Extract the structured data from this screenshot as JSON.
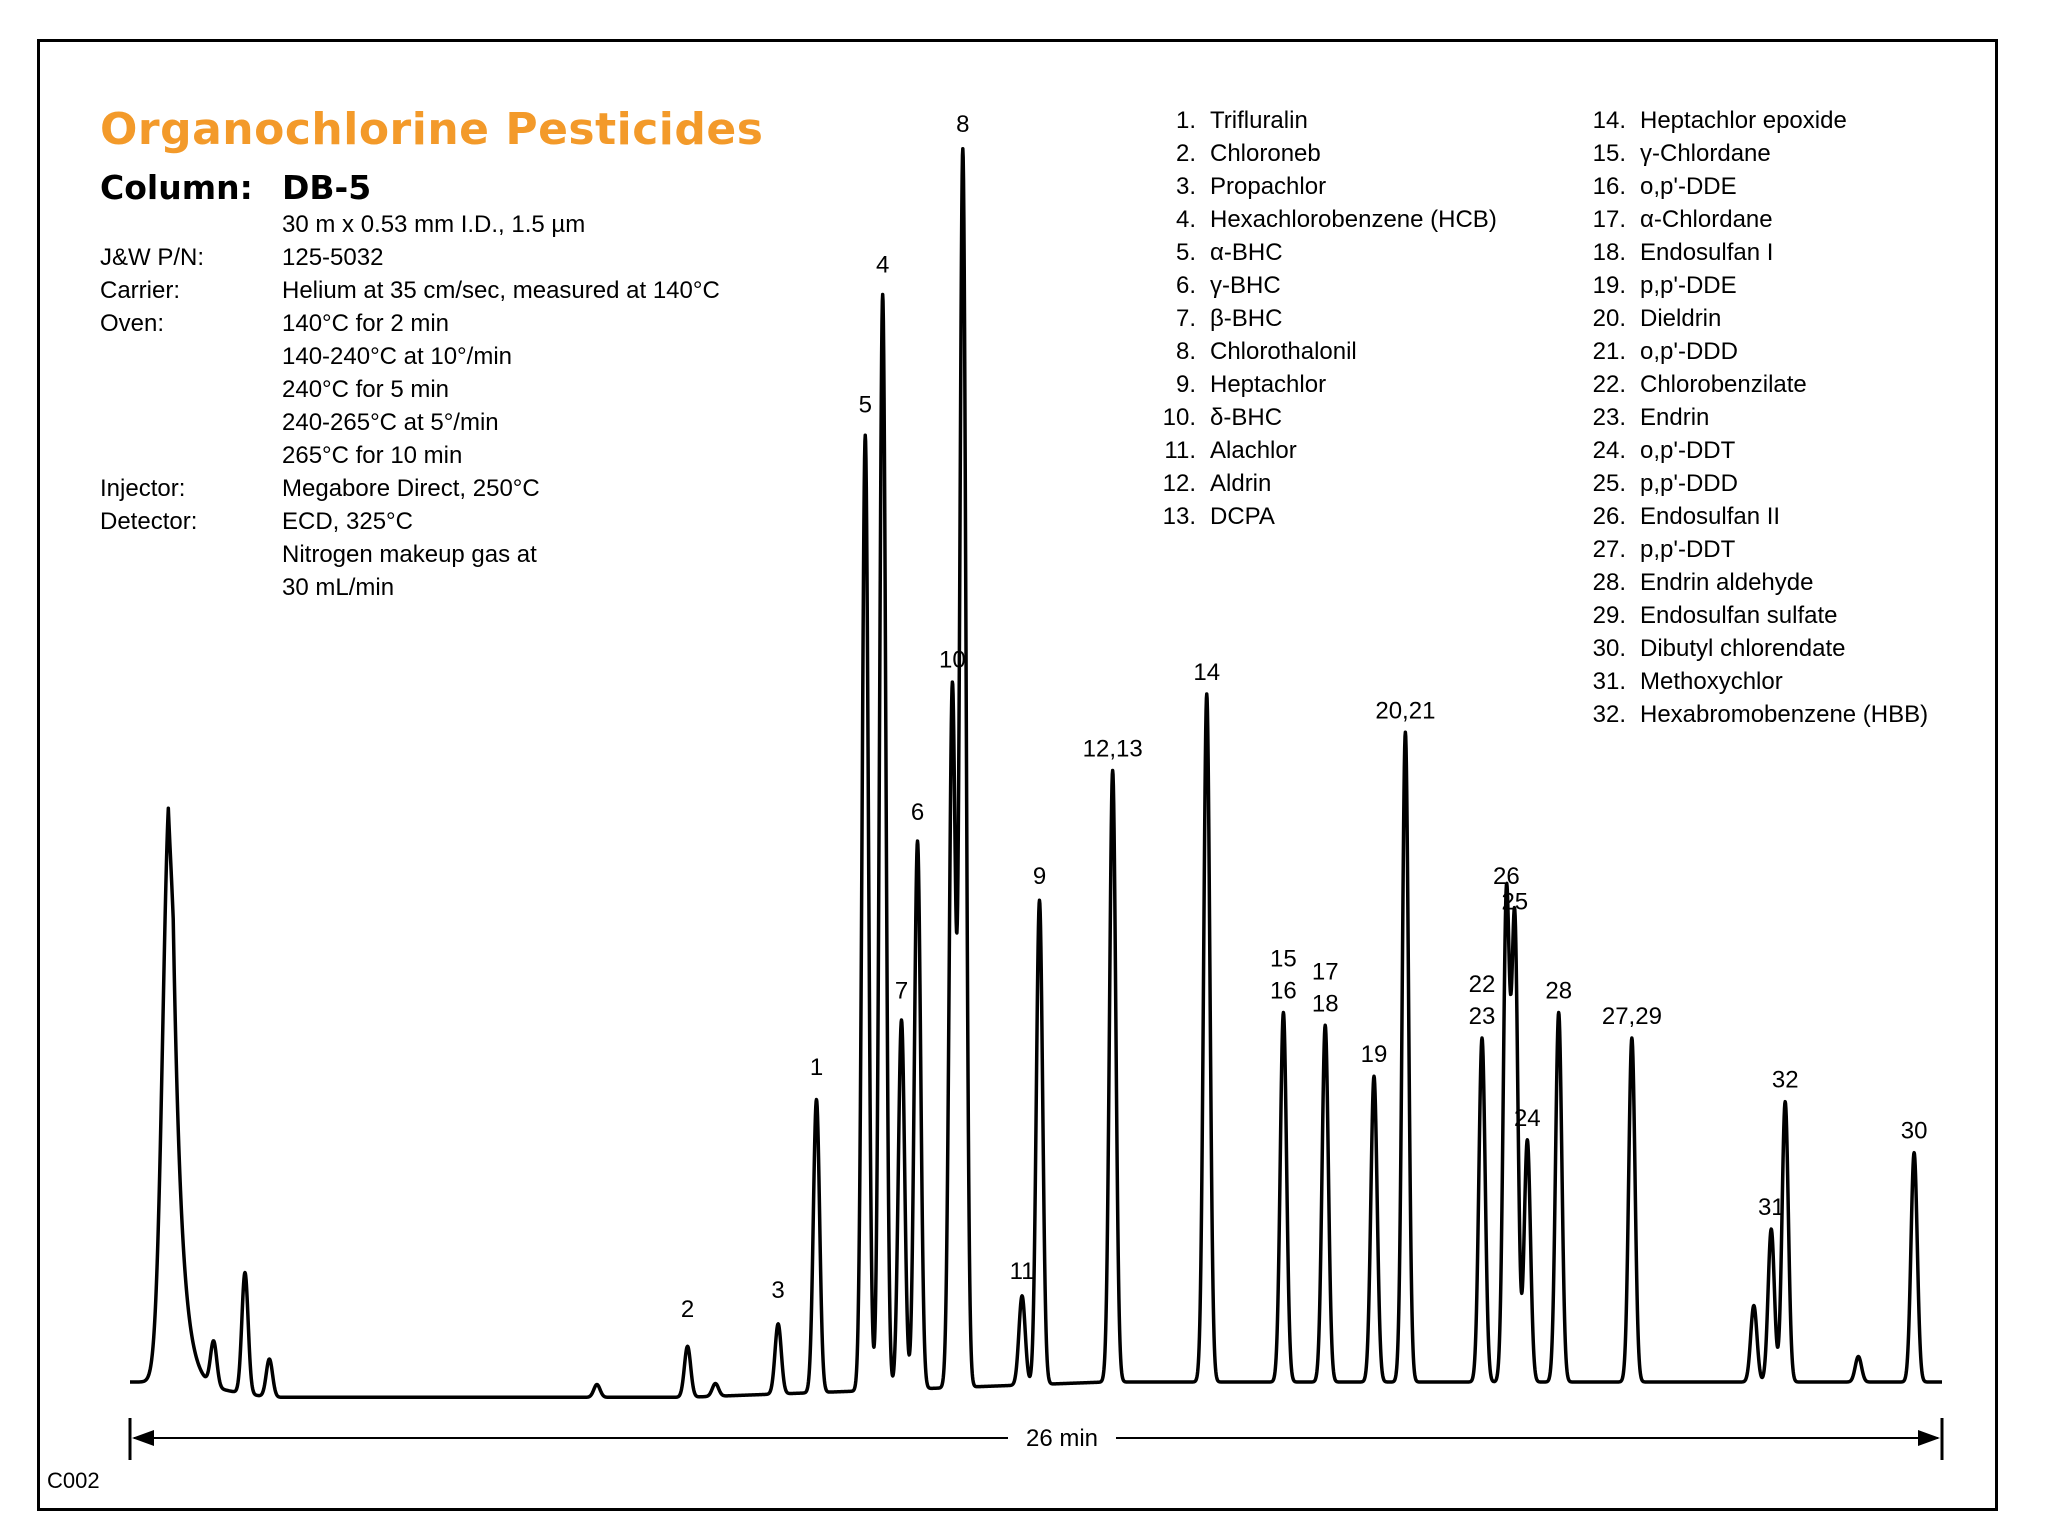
{
  "chart_data": {
    "type": "line",
    "title": "Organochlorine Pesticides",
    "column_label": "Column:",
    "column_value": "DB-5",
    "conditions": [
      {
        "label": "",
        "value": "30 m x 0.53 mm I.D., 1.5 µm"
      },
      {
        "label": "J&W P/N:",
        "value": "125-5032"
      },
      {
        "label": "Carrier:",
        "value": "Helium at 35 cm/sec, measured at 140°C"
      },
      {
        "label": "Oven:",
        "value": "140°C for 2 min"
      },
      {
        "label": "",
        "value": "140-240°C at 10°/min"
      },
      {
        "label": "",
        "value": "240°C for 5 min"
      },
      {
        "label": "",
        "value": "240-265°C at 5°/min"
      },
      {
        "label": "",
        "value": "265°C for 10 min"
      },
      {
        "label": "Injector:",
        "value": "Megabore Direct, 250°C"
      },
      {
        "label": "Detector:",
        "value": "ECD, 325°C"
      },
      {
        "label": "",
        "value": "Nitrogen makeup gas at"
      },
      {
        "label": "",
        "value": "30 mL/min"
      }
    ],
    "compounds_left": [
      {
        "num": "1.",
        "name": "Trifluralin"
      },
      {
        "num": "2.",
        "name": "Chloroneb"
      },
      {
        "num": "3.",
        "name": "Propachlor"
      },
      {
        "num": "4.",
        "name": "Hexachlorobenzene (HCB)"
      },
      {
        "num": "5.",
        "name": "α-BHC"
      },
      {
        "num": "6.",
        "name": "γ-BHC"
      },
      {
        "num": "7.",
        "name": "β-BHC"
      },
      {
        "num": "8.",
        "name": "Chlorothalonil"
      },
      {
        "num": "9.",
        "name": "Heptachlor"
      },
      {
        "num": "10.",
        "name": "δ-BHC"
      },
      {
        "num": "11.",
        "name": "Alachlor"
      },
      {
        "num": "12.",
        "name": "Aldrin"
      },
      {
        "num": "13.",
        "name": "DCPA"
      }
    ],
    "compounds_right": [
      {
        "num": "14.",
        "name": "Heptachlor epoxide"
      },
      {
        "num": "15.",
        "name": "γ-Chlordane"
      },
      {
        "num": "16.",
        "name": "o,p'-DDE"
      },
      {
        "num": "17.",
        "name": "α-Chlordane"
      },
      {
        "num": "18.",
        "name": "Endosulfan I"
      },
      {
        "num": "19.",
        "name": "p,p'-DDE"
      },
      {
        "num": "20.",
        "name": "Dieldrin"
      },
      {
        "num": "21.",
        "name": "o,p'-DDD"
      },
      {
        "num": "22.",
        "name": "Chlorobenzilate"
      },
      {
        "num": "23.",
        "name": "Endrin"
      },
      {
        "num": "24.",
        "name": "o,p'-DDT"
      },
      {
        "num": "25.",
        "name": "p,p'-DDD"
      },
      {
        "num": "26.",
        "name": "Endosulfan II"
      },
      {
        "num": "27.",
        "name": "p,p'-DDT"
      },
      {
        "num": "28.",
        "name": "Endrin aldehyde"
      },
      {
        "num": "29.",
        "name": "Endosulfan sulfate"
      },
      {
        "num": "30.",
        "name": "Dibutyl chlorendate"
      },
      {
        "num": "31.",
        "name": "Methoxychlor"
      },
      {
        "num": "32.",
        "name": "Hexabromobenzene (HBB)"
      }
    ],
    "time_span_label": "26 min",
    "x_range_min": [
      0,
      26
    ],
    "baseline_relative": 0.0,
    "peaks": [
      {
        "label": "",
        "t": 0.55,
        "height": 0.295
      },
      {
        "label": "",
        "t": 0.62,
        "height": 0.2
      },
      {
        "label": "",
        "t": 1.2,
        "height": 0.035
      },
      {
        "label": "",
        "t": 1.65,
        "height": 0.095
      },
      {
        "label": "",
        "t": 2.0,
        "height": 0.03
      },
      {
        "label": "",
        "t": 6.7,
        "height": 0.01
      },
      {
        "label": "",
        "t": 8.4,
        "height": 0.01
      },
      {
        "label": "2",
        "t": 8.0,
        "height": 0.04
      },
      {
        "label": "3",
        "t": 9.3,
        "height": 0.055
      },
      {
        "label": "1",
        "t": 9.85,
        "height": 0.23
      },
      {
        "label": "5",
        "t": 10.55,
        "height": 0.75
      },
      {
        "label": "4",
        "t": 10.8,
        "height": 0.86
      },
      {
        "label": "7",
        "t": 11.07,
        "height": 0.29
      },
      {
        "label": "6",
        "t": 11.3,
        "height": 0.43
      },
      {
        "label": "10",
        "t": 11.8,
        "height": 0.55
      },
      {
        "label": "8",
        "t": 11.95,
        "height": 0.97
      },
      {
        "label": "11",
        "t": 12.8,
        "height": 0.07
      },
      {
        "label": "9",
        "t": 13.05,
        "height": 0.38
      },
      {
        "label": "12,13",
        "t": 14.1,
        "height": 0.48
      },
      {
        "label": "14",
        "t": 15.45,
        "height": 0.54
      },
      {
        "label": "15 16",
        "t": 16.55,
        "height": 0.29
      },
      {
        "label": "17 18",
        "t": 17.15,
        "height": 0.28
      },
      {
        "label": "19",
        "t": 17.85,
        "height": 0.24
      },
      {
        "label": "20,21",
        "t": 18.3,
        "height": 0.51
      },
      {
        "label": "22 23",
        "t": 19.4,
        "height": 0.27
      },
      {
        "label": "26",
        "t": 19.75,
        "height": 0.38
      },
      {
        "label": "25",
        "t": 19.87,
        "height": 0.36
      },
      {
        "label": "24",
        "t": 20.05,
        "height": 0.19
      },
      {
        "label": "28",
        "t": 20.5,
        "height": 0.29
      },
      {
        "label": "27,29",
        "t": 21.55,
        "height": 0.27
      },
      {
        "label": "",
        "t": 23.3,
        "height": 0.06
      },
      {
        "label": "31",
        "t": 23.55,
        "height": 0.12
      },
      {
        "label": "32",
        "t": 23.75,
        "height": 0.22
      },
      {
        "label": "",
        "t": 24.8,
        "height": 0.02
      },
      {
        "label": "30",
        "t": 25.6,
        "height": 0.18
      }
    ],
    "footer_code": "C002"
  }
}
